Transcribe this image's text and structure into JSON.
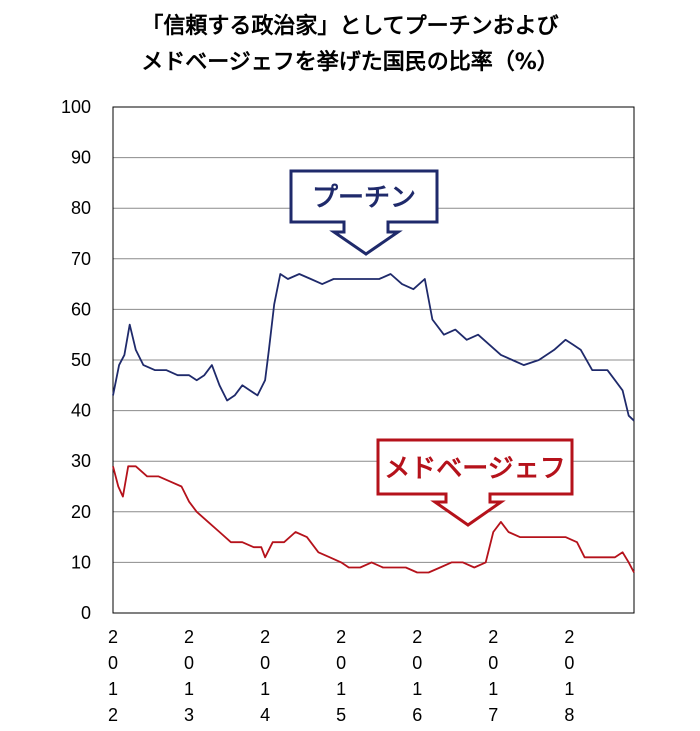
{
  "chart_data": {
    "type": "line",
    "title_line1": "「信頼する政治家」としてプーチンおよび",
    "title_line2": "メドベージェフを挙げた国民の比率（%）",
    "ylim": [
      0,
      100
    ],
    "yticks": [
      0,
      10,
      20,
      30,
      40,
      50,
      60,
      70,
      80,
      90,
      100
    ],
    "x_range": [
      2012.0,
      2018.85
    ],
    "x_tick_labels": [
      {
        "x": 2012,
        "label": "2012"
      },
      {
        "x": 2013,
        "label": "2013"
      },
      {
        "x": 2014,
        "label": "2014"
      },
      {
        "x": 2015,
        "label": "2015"
      },
      {
        "x": 2016,
        "label": "2016"
      },
      {
        "x": 2017,
        "label": "2017"
      },
      {
        "x": 2018,
        "label": "2018"
      }
    ],
    "grid": true,
    "series": [
      {
        "name": "プーチン",
        "color": "#1f2a6b",
        "points": [
          [
            2012.0,
            43
          ],
          [
            2012.08,
            49
          ],
          [
            2012.15,
            51
          ],
          [
            2012.22,
            57
          ],
          [
            2012.3,
            52
          ],
          [
            2012.4,
            49
          ],
          [
            2012.55,
            48
          ],
          [
            2012.7,
            48
          ],
          [
            2012.85,
            47
          ],
          [
            2013.0,
            47
          ],
          [
            2013.1,
            46
          ],
          [
            2013.2,
            47
          ],
          [
            2013.3,
            49
          ],
          [
            2013.4,
            45
          ],
          [
            2013.5,
            42
          ],
          [
            2013.6,
            43
          ],
          [
            2013.7,
            45
          ],
          [
            2013.8,
            44
          ],
          [
            2013.9,
            43
          ],
          [
            2014.0,
            46
          ],
          [
            2014.05,
            52
          ],
          [
            2014.12,
            61
          ],
          [
            2014.2,
            67
          ],
          [
            2014.3,
            66
          ],
          [
            2014.45,
            67
          ],
          [
            2014.6,
            66
          ],
          [
            2014.75,
            65
          ],
          [
            2014.9,
            66
          ],
          [
            2015.1,
            66
          ],
          [
            2015.3,
            66
          ],
          [
            2015.5,
            66
          ],
          [
            2015.65,
            67
          ],
          [
            2015.8,
            65
          ],
          [
            2015.95,
            64
          ],
          [
            2016.1,
            66
          ],
          [
            2016.2,
            58
          ],
          [
            2016.35,
            55
          ],
          [
            2016.5,
            56
          ],
          [
            2016.65,
            54
          ],
          [
            2016.8,
            55
          ],
          [
            2016.95,
            53
          ],
          [
            2017.1,
            51
          ],
          [
            2017.25,
            50
          ],
          [
            2017.4,
            49
          ],
          [
            2017.6,
            50
          ],
          [
            2017.8,
            52
          ],
          [
            2017.95,
            54
          ],
          [
            2018.05,
            53
          ],
          [
            2018.15,
            52
          ],
          [
            2018.3,
            48
          ],
          [
            2018.5,
            48
          ],
          [
            2018.6,
            46
          ],
          [
            2018.7,
            44
          ],
          [
            2018.78,
            39
          ],
          [
            2018.85,
            38
          ]
        ]
      },
      {
        "name": "メドベージェフ",
        "color": "#b5121b",
        "points": [
          [
            2012.0,
            29
          ],
          [
            2012.07,
            25
          ],
          [
            2012.13,
            23
          ],
          [
            2012.2,
            29
          ],
          [
            2012.3,
            29
          ],
          [
            2012.45,
            27
          ],
          [
            2012.6,
            27
          ],
          [
            2012.75,
            26
          ],
          [
            2012.9,
            25
          ],
          [
            2013.0,
            22
          ],
          [
            2013.1,
            20
          ],
          [
            2013.25,
            18
          ],
          [
            2013.4,
            16
          ],
          [
            2013.55,
            14
          ],
          [
            2013.7,
            14
          ],
          [
            2013.85,
            13
          ],
          [
            2013.95,
            13
          ],
          [
            2014.0,
            11
          ],
          [
            2014.1,
            14
          ],
          [
            2014.25,
            14
          ],
          [
            2014.4,
            16
          ],
          [
            2014.55,
            15
          ],
          [
            2014.7,
            12
          ],
          [
            2014.85,
            11
          ],
          [
            2015.0,
            10
          ],
          [
            2015.1,
            9
          ],
          [
            2015.25,
            9
          ],
          [
            2015.4,
            10
          ],
          [
            2015.55,
            9
          ],
          [
            2015.7,
            9
          ],
          [
            2015.85,
            9
          ],
          [
            2016.0,
            8
          ],
          [
            2016.15,
            8
          ],
          [
            2016.3,
            9
          ],
          [
            2016.45,
            10
          ],
          [
            2016.6,
            10
          ],
          [
            2016.75,
            9
          ],
          [
            2016.9,
            10
          ],
          [
            2017.0,
            16
          ],
          [
            2017.1,
            18
          ],
          [
            2017.2,
            16
          ],
          [
            2017.35,
            15
          ],
          [
            2017.5,
            15
          ],
          [
            2017.65,
            15
          ],
          [
            2017.8,
            15
          ],
          [
            2017.95,
            15
          ],
          [
            2018.1,
            14
          ],
          [
            2018.2,
            11
          ],
          [
            2018.35,
            11
          ],
          [
            2018.5,
            11
          ],
          [
            2018.6,
            11
          ],
          [
            2018.7,
            12
          ],
          [
            2018.78,
            10
          ],
          [
            2018.85,
            8
          ]
        ]
      }
    ],
    "annotations": [
      {
        "text": "プーチン",
        "color": "#1f2a6b"
      },
      {
        "text": "メドベージェフ",
        "color": "#b5121b"
      }
    ]
  }
}
